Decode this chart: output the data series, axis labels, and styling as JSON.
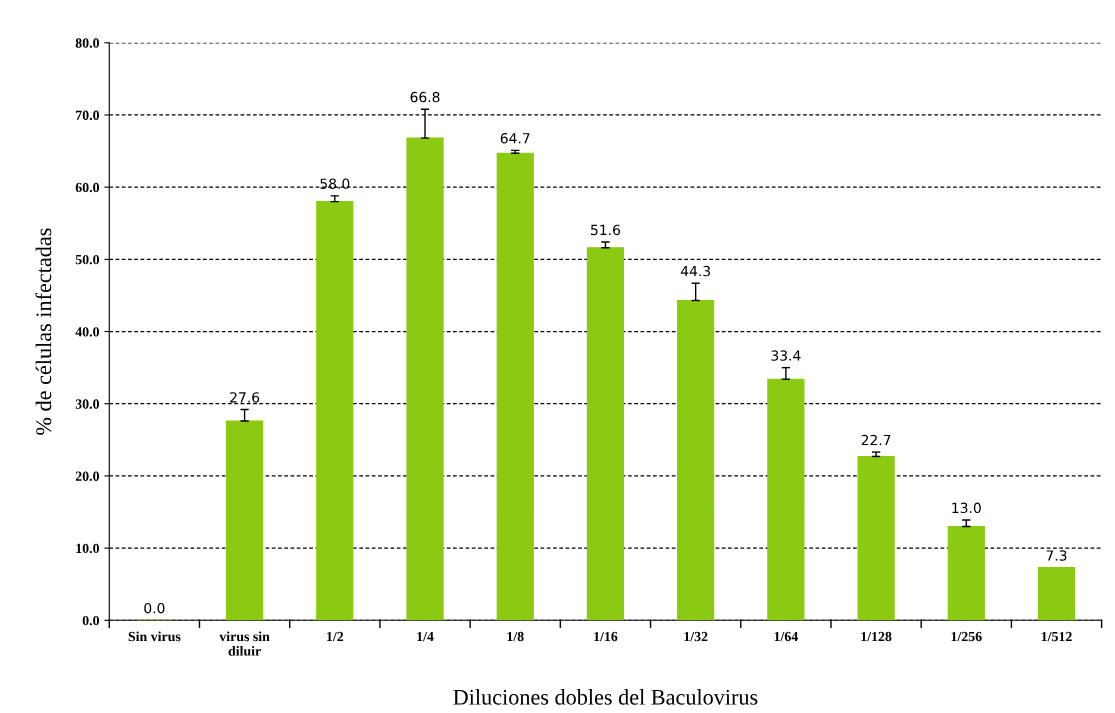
{
  "chart_data": {
    "type": "bar",
    "xlabel": "Diluciones dobles del Baculovirus",
    "ylabel": "% de células infectadas",
    "categories": [
      "Sin virus",
      "virus sin\ndiluir",
      "1/2",
      "1/4",
      "1/8",
      "1/16",
      "1/32",
      "1/64",
      "1/128",
      "1/256",
      "1/512"
    ],
    "values": [
      0.0,
      27.6,
      58.0,
      66.8,
      64.7,
      51.6,
      44.3,
      33.4,
      22.7,
      13.0,
      7.3
    ],
    "errors": [
      null,
      1.6,
      0.8,
      4.0,
      0.4,
      0.8,
      2.4,
      1.6,
      0.6,
      0.9,
      null
    ],
    "color": "#8cc912",
    "ylim": [
      0,
      80
    ],
    "yticks": [
      {
        "value": 0,
        "label": "0.0"
      },
      {
        "value": 10,
        "label": "10.0"
      },
      {
        "value": 20,
        "label": "20.0"
      },
      {
        "value": 30,
        "label": "30.0"
      },
      {
        "value": 40,
        "label": "40.0"
      },
      {
        "value": 50,
        "label": "50.0"
      },
      {
        "value": 60,
        "label": "60.0"
      },
      {
        "value": 70,
        "label": "70.0"
      },
      {
        "value": 80,
        "label": "80.0"
      }
    ],
    "grid": "y",
    "value_labels": [
      "0.0",
      "27.6",
      "58.0",
      "66.8",
      "64.7",
      "51.6",
      "44.3",
      "33.4",
      "22.7",
      "13.0",
      "7.3"
    ]
  }
}
